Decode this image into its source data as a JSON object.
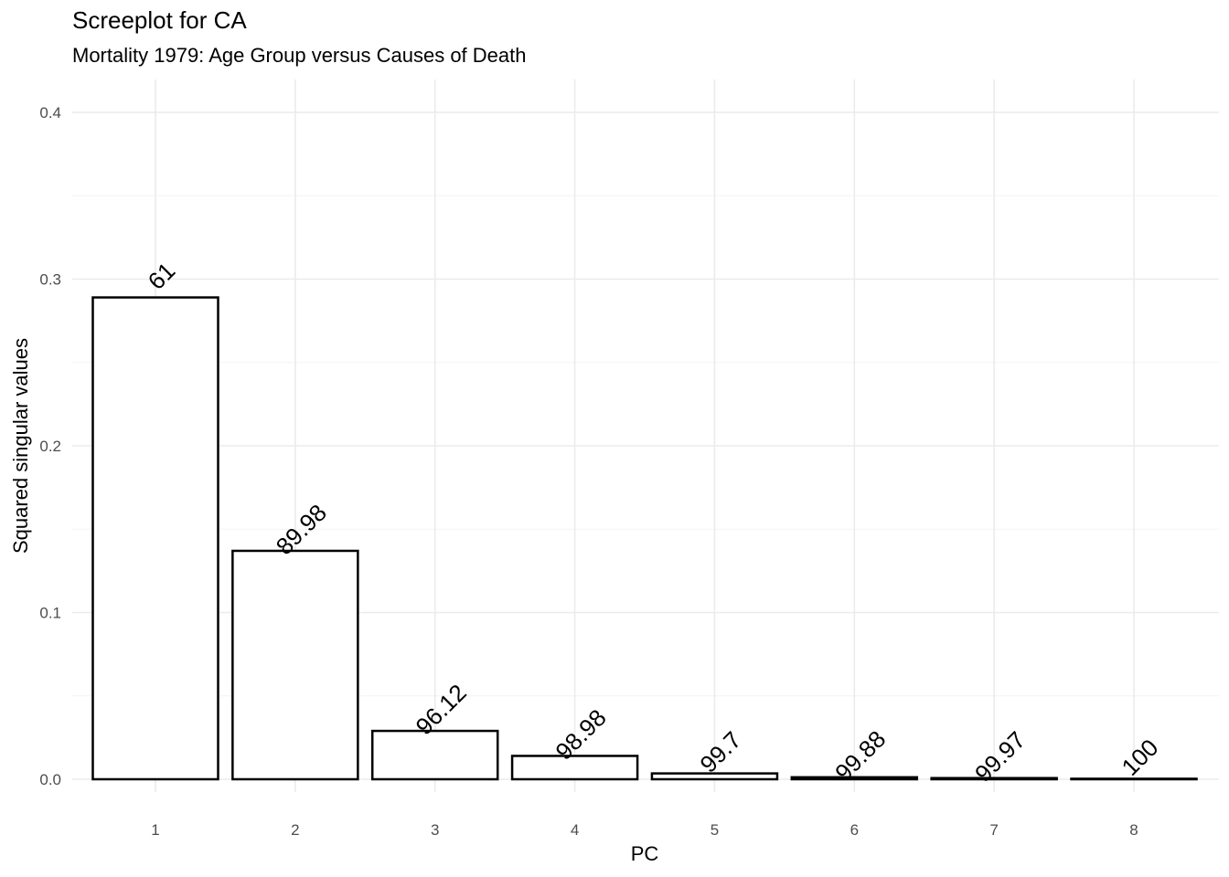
{
  "chart_data": {
    "type": "bar",
    "title": "Screeplot for CA",
    "subtitle": "Mortality 1979: Age Group versus Causes of Death",
    "xlabel": "PC",
    "ylabel": "Squared singular values",
    "categories": [
      "1",
      "2",
      "3",
      "4",
      "5",
      "6",
      "7",
      "8"
    ],
    "values": [
      0.289,
      0.137,
      0.029,
      0.014,
      0.0035,
      0.0012,
      0.0007,
      0.0003
    ],
    "data_labels": [
      "61",
      "89.98",
      "96.12",
      "98.98",
      "99.7",
      "99.88",
      "99.97",
      "100"
    ],
    "ylim": [
      0,
      0.4
    ],
    "y_ticks": [
      0.0,
      0.1,
      0.2,
      0.3,
      0.4
    ],
    "y_tick_labels": [
      "0.0",
      "0.1",
      "0.2",
      "0.3",
      "0.4"
    ],
    "grid": true,
    "bar_fill": "#ffffff",
    "bar_stroke": "#000000"
  }
}
